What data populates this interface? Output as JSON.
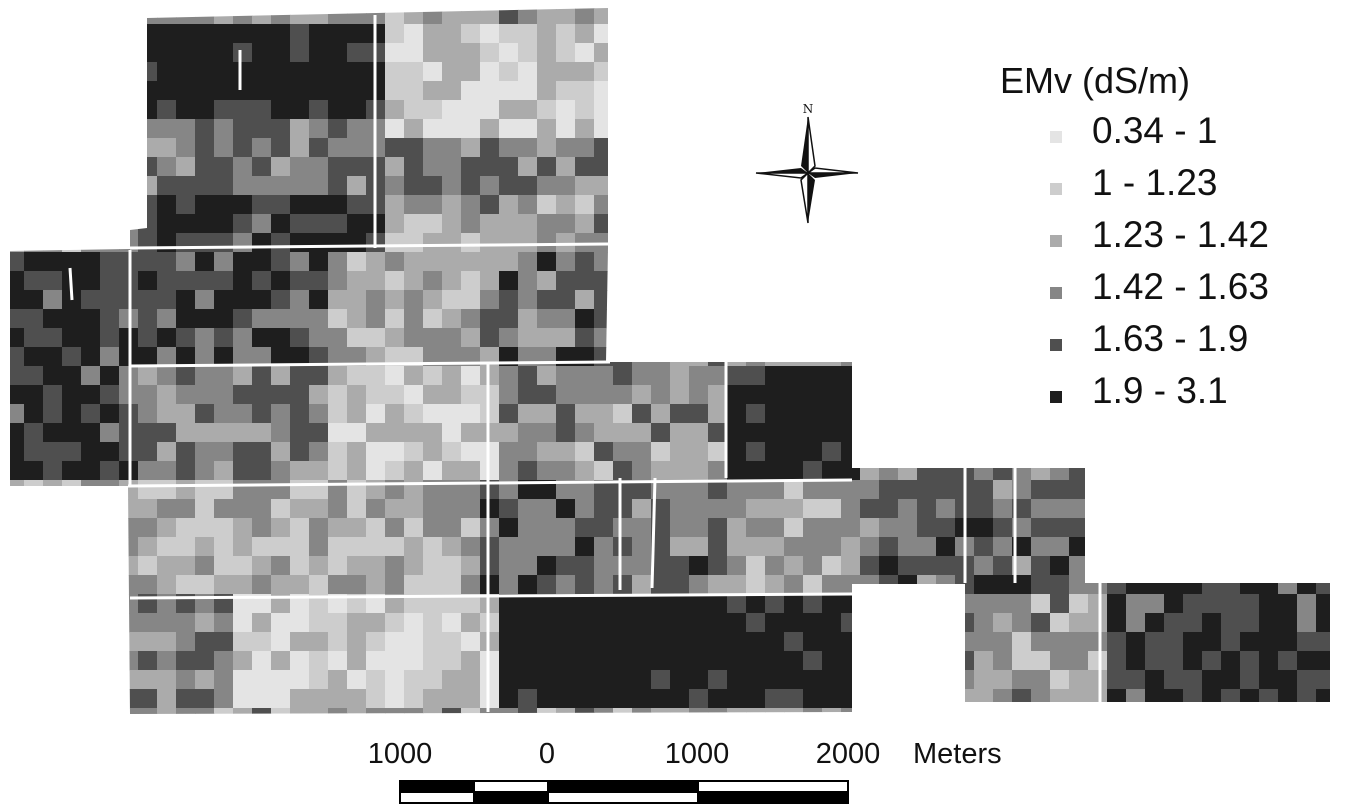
{
  "map": {
    "legend": {
      "title": "EMv (dS/m)",
      "classes": [
        {
          "label": "0.34 - 1",
          "color": "#e4e4e4"
        },
        {
          "label": "1 - 1.23",
          "color": "#cdcdcd"
        },
        {
          "label": "1.23 - 1.42",
          "color": "#ababab"
        },
        {
          "label": "1.42 - 1.63",
          "color": "#868686"
        },
        {
          "label": "1.63 - 1.9",
          "color": "#4f4f4f"
        },
        {
          "label": "1.9 - 3.1",
          "color": "#1e1e1e"
        }
      ]
    },
    "north_arrow": {
      "label": "N",
      "icon": "north-arrow-compass-icon"
    },
    "scale_bar": {
      "ticks": [
        "1000",
        "0",
        "1000",
        "2000"
      ],
      "unit": "Meters"
    }
  }
}
